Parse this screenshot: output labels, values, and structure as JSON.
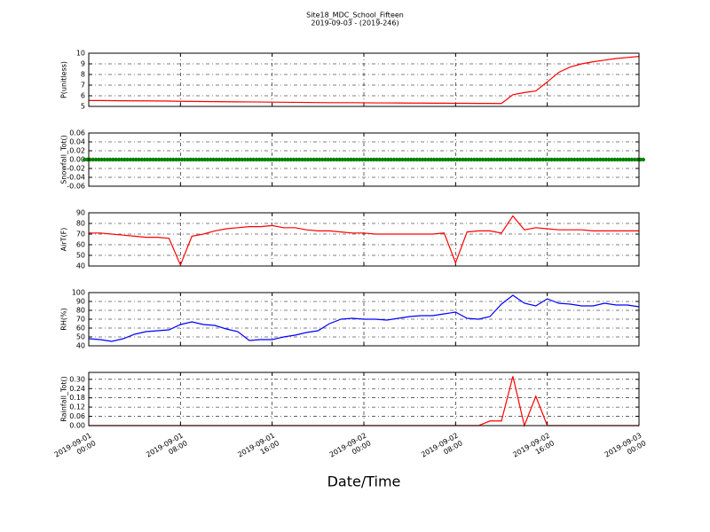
{
  "chart_data": [
    {
      "type": "line",
      "title": "Site18_MDC_School_Fifteen",
      "subtitle": "2019-09-03 - (2019-246)",
      "ylabel": "P(unitless)",
      "color": "#ff0000",
      "ylim": [
        5,
        10
      ],
      "yticks": [
        5,
        6,
        7,
        8,
        9,
        10
      ],
      "x": [
        "2019-09-01 00:00",
        "2019-09-01 01:00",
        "2019-09-01 02:00",
        "2019-09-01 03:00",
        "2019-09-01 04:00",
        "2019-09-01 05:00",
        "2019-09-01 06:00",
        "2019-09-01 07:00",
        "2019-09-01 08:00",
        "2019-09-01 09:00",
        "2019-09-01 10:00",
        "2019-09-01 11:00",
        "2019-09-01 12:00",
        "2019-09-01 13:00",
        "2019-09-01 14:00",
        "2019-09-01 15:00",
        "2019-09-01 16:00",
        "2019-09-01 17:00",
        "2019-09-01 18:00",
        "2019-09-01 19:00",
        "2019-09-01 20:00",
        "2019-09-01 21:00",
        "2019-09-01 22:00",
        "2019-09-01 23:00",
        "2019-09-02 00:00",
        "2019-09-02 01:00",
        "2019-09-02 02:00",
        "2019-09-02 03:00",
        "2019-09-02 04:00",
        "2019-09-02 05:00",
        "2019-09-02 06:00",
        "2019-09-02 07:00",
        "2019-09-02 08:00",
        "2019-09-02 09:00",
        "2019-09-02 10:00",
        "2019-09-02 11:00",
        "2019-09-02 12:00",
        "2019-09-02 13:00",
        "2019-09-02 14:00",
        "2019-09-02 15:00",
        "2019-09-02 16:00",
        "2019-09-02 17:00",
        "2019-09-02 18:00",
        "2019-09-02 19:00",
        "2019-09-02 20:00",
        "2019-09-02 21:00",
        "2019-09-02 22:00",
        "2019-09-02 23:00",
        "2019-09-03 00:00"
      ],
      "values": [
        5.55,
        5.55,
        5.54,
        5.53,
        5.52,
        5.52,
        5.51,
        5.5,
        5.48,
        5.47,
        5.46,
        5.45,
        5.44,
        5.43,
        5.42,
        5.41,
        5.4,
        5.39,
        5.38,
        5.37,
        5.36,
        5.35,
        5.35,
        5.35,
        5.34,
        5.33,
        5.33,
        5.32,
        5.31,
        5.31,
        5.3,
        5.3,
        5.29,
        5.29,
        5.28,
        5.28,
        5.27,
        6.1,
        6.3,
        6.45,
        7.3,
        8.2,
        8.7,
        9.0,
        9.2,
        9.35,
        9.5,
        9.6,
        9.7
      ]
    },
    {
      "type": "line",
      "ylabel": "Snowfall_Tot()",
      "color": "#008000",
      "marker": true,
      "ylim": [
        -0.06,
        0.06
      ],
      "yticks": [
        -0.06,
        -0.04,
        -0.02,
        {
          "value": 0,
          "label": "0.00"
        },
        0.02,
        0.04,
        0.06
      ],
      "x": [
        "2019-09-01 00:00",
        "2019-09-01 01:00",
        "2019-09-01 02:00",
        "2019-09-01 03:00",
        "2019-09-01 04:00",
        "2019-09-01 05:00",
        "2019-09-01 06:00",
        "2019-09-01 07:00",
        "2019-09-01 08:00",
        "2019-09-01 09:00",
        "2019-09-01 10:00",
        "2019-09-01 11:00",
        "2019-09-01 12:00",
        "2019-09-01 13:00",
        "2019-09-01 14:00",
        "2019-09-01 15:00",
        "2019-09-01 16:00",
        "2019-09-01 17:00",
        "2019-09-01 18:00",
        "2019-09-01 19:00",
        "2019-09-01 20:00",
        "2019-09-01 21:00",
        "2019-09-01 22:00",
        "2019-09-01 23:00",
        "2019-09-02 00:00",
        "2019-09-02 01:00",
        "2019-09-02 02:00",
        "2019-09-02 03:00",
        "2019-09-02 04:00",
        "2019-09-02 05:00",
        "2019-09-02 06:00",
        "2019-09-02 07:00",
        "2019-09-02 08:00",
        "2019-09-02 09:00",
        "2019-09-02 10:00",
        "2019-09-02 11:00",
        "2019-09-02 12:00",
        "2019-09-02 13:00",
        "2019-09-02 14:00",
        "2019-09-02 15:00",
        "2019-09-02 16:00",
        "2019-09-02 17:00",
        "2019-09-02 18:00",
        "2019-09-02 19:00",
        "2019-09-02 20:00",
        "2019-09-02 21:00",
        "2019-09-02 22:00",
        "2019-09-02 23:00",
        "2019-09-03 00:00"
      ],
      "values": [
        0,
        0,
        0,
        0,
        0,
        0,
        0,
        0,
        0,
        0,
        0,
        0,
        0,
        0,
        0,
        0,
        0,
        0,
        0,
        0,
        0,
        0,
        0,
        0,
        0,
        0,
        0,
        0,
        0,
        0,
        0,
        0,
        0,
        0,
        0,
        0,
        0,
        0,
        0,
        0,
        0,
        0,
        0,
        0,
        0,
        0,
        0,
        0,
        0
      ]
    },
    {
      "type": "line",
      "ylabel": "AirT(F)",
      "color": "#ff0000",
      "ylim": [
        40,
        90
      ],
      "yticks": [
        40,
        50,
        60,
        70,
        80,
        90
      ],
      "x": [
        "2019-09-01 00:00",
        "2019-09-01 01:00",
        "2019-09-01 02:00",
        "2019-09-01 03:00",
        "2019-09-01 04:00",
        "2019-09-01 05:00",
        "2019-09-01 06:00",
        "2019-09-01 07:00",
        "2019-09-01 08:00",
        "2019-09-01 09:00",
        "2019-09-01 10:00",
        "2019-09-01 11:00",
        "2019-09-01 12:00",
        "2019-09-01 13:00",
        "2019-09-01 14:00",
        "2019-09-01 15:00",
        "2019-09-01 16:00",
        "2019-09-01 17:00",
        "2019-09-01 18:00",
        "2019-09-01 19:00",
        "2019-09-01 20:00",
        "2019-09-01 21:00",
        "2019-09-01 22:00",
        "2019-09-01 23:00",
        "2019-09-02 00:00",
        "2019-09-02 01:00",
        "2019-09-02 02:00",
        "2019-09-02 03:00",
        "2019-09-02 04:00",
        "2019-09-02 05:00",
        "2019-09-02 06:00",
        "2019-09-02 07:00",
        "2019-09-02 08:00",
        "2019-09-02 09:00",
        "2019-09-02 10:00",
        "2019-09-02 11:00",
        "2019-09-02 12:00",
        "2019-09-02 13:00",
        "2019-09-02 14:00",
        "2019-09-02 15:00",
        "2019-09-02 16:00",
        "2019-09-02 17:00",
        "2019-09-02 18:00",
        "2019-09-02 19:00",
        "2019-09-02 20:00",
        "2019-09-02 21:00",
        "2019-09-02 22:00",
        "2019-09-02 23:00",
        "2019-09-03 00:00"
      ],
      "values": [
        71,
        71,
        70,
        69,
        68,
        67,
        67,
        66,
        41,
        68,
        70,
        73,
        75,
        76,
        77,
        77,
        78,
        76,
        76,
        74,
        73,
        73,
        72,
        71,
        71,
        70,
        70,
        70,
        70,
        70,
        70,
        71,
        43,
        72,
        73,
        73,
        71,
        87,
        74,
        76,
        75,
        74,
        74,
        74,
        73,
        73,
        73,
        73,
        73
      ]
    },
    {
      "type": "line",
      "ylabel": "RH(%)",
      "color": "#0000ff",
      "ylim": [
        40,
        100
      ],
      "yticks": [
        40,
        50,
        60,
        70,
        80,
        90,
        100
      ],
      "x": [
        "2019-09-01 00:00",
        "2019-09-01 01:00",
        "2019-09-01 02:00",
        "2019-09-01 03:00",
        "2019-09-01 04:00",
        "2019-09-01 05:00",
        "2019-09-01 06:00",
        "2019-09-01 07:00",
        "2019-09-01 08:00",
        "2019-09-01 09:00",
        "2019-09-01 10:00",
        "2019-09-01 11:00",
        "2019-09-01 12:00",
        "2019-09-01 13:00",
        "2019-09-01 14:00",
        "2019-09-01 15:00",
        "2019-09-01 16:00",
        "2019-09-01 17:00",
        "2019-09-01 18:00",
        "2019-09-01 19:00",
        "2019-09-01 20:00",
        "2019-09-01 21:00",
        "2019-09-01 22:00",
        "2019-09-01 23:00",
        "2019-09-02 00:00",
        "2019-09-02 01:00",
        "2019-09-02 02:00",
        "2019-09-02 03:00",
        "2019-09-02 04:00",
        "2019-09-02 05:00",
        "2019-09-02 06:00",
        "2019-09-02 07:00",
        "2019-09-02 08:00",
        "2019-09-02 09:00",
        "2019-09-02 10:00",
        "2019-09-02 11:00",
        "2019-09-02 12:00",
        "2019-09-02 13:00",
        "2019-09-02 14:00",
        "2019-09-02 15:00",
        "2019-09-02 16:00",
        "2019-09-02 17:00",
        "2019-09-02 18:00",
        "2019-09-02 19:00",
        "2019-09-02 20:00",
        "2019-09-02 21:00",
        "2019-09-02 22:00",
        "2019-09-02 23:00",
        "2019-09-03 00:00"
      ],
      "values": [
        48,
        47,
        45,
        48,
        53,
        56,
        57,
        58,
        64,
        67,
        64,
        63,
        59,
        56,
        46,
        47,
        47,
        50,
        52,
        55,
        57,
        65,
        70,
        71,
        70,
        70,
        69,
        71,
        73,
        74,
        74,
        76,
        78,
        71,
        70,
        73,
        87,
        97,
        88,
        85,
        93,
        88,
        87,
        85,
        85,
        88,
        86,
        86,
        84
      ]
    },
    {
      "type": "line",
      "ylabel": "Rainfall_Tot()",
      "xlabel": "Date/Time",
      "color": "#ff0000",
      "ylim": [
        0,
        0.345
      ],
      "yticks": [
        {
          "value": 0,
          "label": "0.00"
        },
        0.06,
        0.12,
        0.18,
        0.24,
        {
          "value": 0.3,
          "label": "0.30"
        }
      ],
      "xlim": [
        "2019-09-01 00:00",
        "2019-09-03 00:00"
      ],
      "xticks": [
        "2019-09-01 00:00",
        "2019-09-01 08:00",
        "2019-09-01 16:00",
        "2019-09-02 00:00",
        "2019-09-02 08:00",
        "2019-09-02 16:00",
        "2019-09-03 00:00"
      ],
      "x": [
        "2019-09-01 00:00",
        "2019-09-01 01:00",
        "2019-09-01 02:00",
        "2019-09-01 03:00",
        "2019-09-01 04:00",
        "2019-09-01 05:00",
        "2019-09-01 06:00",
        "2019-09-01 07:00",
        "2019-09-01 08:00",
        "2019-09-01 09:00",
        "2019-09-01 10:00",
        "2019-09-01 11:00",
        "2019-09-01 12:00",
        "2019-09-01 13:00",
        "2019-09-01 14:00",
        "2019-09-01 15:00",
        "2019-09-01 16:00",
        "2019-09-01 17:00",
        "2019-09-01 18:00",
        "2019-09-01 19:00",
        "2019-09-01 20:00",
        "2019-09-01 21:00",
        "2019-09-01 22:00",
        "2019-09-01 23:00",
        "2019-09-02 00:00",
        "2019-09-02 01:00",
        "2019-09-02 02:00",
        "2019-09-02 03:00",
        "2019-09-02 04:00",
        "2019-09-02 05:00",
        "2019-09-02 06:00",
        "2019-09-02 07:00",
        "2019-09-02 08:00",
        "2019-09-02 09:00",
        "2019-09-02 10:00",
        "2019-09-02 11:00",
        "2019-09-02 12:00",
        "2019-09-02 13:00",
        "2019-09-02 14:00",
        "2019-09-02 15:00",
        "2019-09-02 16:00",
        "2019-09-02 17:00",
        "2019-09-02 18:00",
        "2019-09-02 19:00",
        "2019-09-02 20:00",
        "2019-09-02 21:00",
        "2019-09-02 22:00",
        "2019-09-02 23:00",
        "2019-09-03 00:00"
      ],
      "values": [
        0,
        0,
        0,
        0,
        0,
        0,
        0,
        0,
        0,
        0,
        0,
        0,
        0,
        0,
        0,
        0,
        0,
        0,
        0,
        0,
        0,
        0,
        0,
        0,
        0,
        0,
        0,
        0,
        0,
        0,
        0,
        0,
        0,
        0,
        0,
        0.03,
        0.03,
        0.32,
        0,
        0.19,
        0,
        0,
        0,
        0,
        0,
        0,
        0,
        0,
        0
      ]
    }
  ]
}
